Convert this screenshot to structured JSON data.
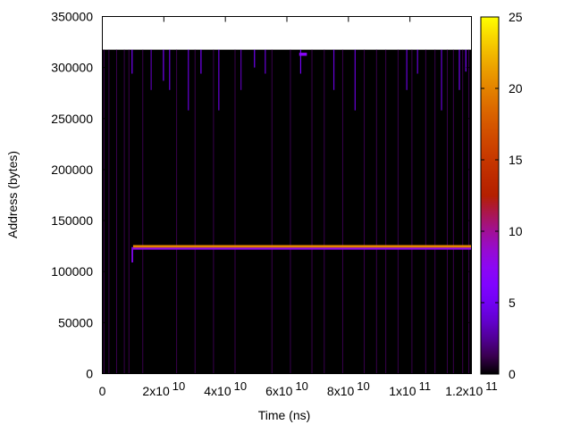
{
  "chart_data": {
    "type": "heatmap",
    "title": "",
    "xlabel": "Time (ns)",
    "ylabel": "Address (bytes)",
    "xlim": [
      0,
      120000000000.0
    ],
    "ylim": [
      0,
      350000
    ],
    "cblim": [
      0,
      25
    ],
    "palette": "gnuplot rgbformulae 7,5,15 (black-purple-red-orange-yellow)",
    "grid": false,
    "x_ticks": [
      {
        "mant": "0",
        "exp": ""
      },
      {
        "mant": "2x10",
        "exp": "10"
      },
      {
        "mant": "4x10",
        "exp": "10"
      },
      {
        "mant": "6x10",
        "exp": "10"
      },
      {
        "mant": "8x10",
        "exp": "10"
      },
      {
        "mant": "1x10",
        "exp": "11"
      },
      {
        "mant": "1.2x10",
        "exp": "11"
      }
    ],
    "x_tick_values": [
      0,
      20000000000.0,
      40000000000.0,
      60000000000.0,
      80000000000.0,
      100000000000.0,
      120000000000.0
    ],
    "y_ticks": [
      "0",
      "50000",
      "100000",
      "150000",
      "200000",
      "250000",
      "300000",
      "350000"
    ],
    "y_tick_values": [
      0,
      50000,
      100000,
      150000,
      200000,
      250000,
      300000,
      350000
    ],
    "cb_ticks": [
      "0",
      "5",
      "10",
      "15",
      "20",
      "25"
    ],
    "cb_tick_values": [
      0,
      5,
      10,
      15,
      20,
      25
    ],
    "data_extent": {
      "x": [
        0,
        120000000000.0
      ],
      "y": [
        0,
        317500
      ],
      "background_value": 0
    },
    "bands": [
      {
        "x": [
          10000000000.0,
          120000000000.0
        ],
        "y": [
          123500,
          126000
        ],
        "value": 20
      },
      {
        "x": [
          10000000000.0,
          120000000000.0
        ],
        "y": [
          121500,
          123500
        ],
        "value": 8
      },
      {
        "x": [
          9500000000.0,
          10000000000.0
        ],
        "y": [
          109000,
          124000
        ],
        "value": 7
      },
      {
        "x": [
          64000000000.0,
          66500000000.0
        ],
        "y": [
          311500,
          314500
        ],
        "value": 7
      }
    ],
    "stripes": [
      {
        "t": 9500000000.0,
        "y": [
          294000,
          317500
        ],
        "value": 5
      },
      {
        "t": 15700000000.0,
        "y": [
          278000,
          317500
        ],
        "value": 3
      },
      {
        "t": 19700000000.0,
        "y": [
          287000,
          317500
        ],
        "value": 5
      },
      {
        "t": 21700000000.0,
        "y": [
          278000,
          317500
        ],
        "value": 4
      },
      {
        "t": 27800000000.0,
        "y": [
          258000,
          317500
        ],
        "value": 4
      },
      {
        "t": 31900000000.0,
        "y": [
          294000,
          317500
        ],
        "value": 5
      },
      {
        "t": 37700000000.0,
        "y": [
          258000,
          317500
        ],
        "value": 4
      },
      {
        "t": 44900000000.0,
        "y": [
          278000,
          317500
        ],
        "value": 3
      },
      {
        "t": 49300000000.0,
        "y": [
          300000,
          317500
        ],
        "value": 5
      },
      {
        "t": 52800000000.0,
        "y": [
          294000,
          317500
        ],
        "value": 4
      },
      {
        "t": 64300000000.0,
        "y": [
          294000,
          317500
        ],
        "value": 5
      },
      {
        "t": 75100000000.0,
        "y": [
          278000,
          317500
        ],
        "value": 4
      },
      {
        "t": 82000000000.0,
        "y": [
          258000,
          317500
        ],
        "value": 4
      },
      {
        "t": 98800000000.0,
        "y": [
          278000,
          317500
        ],
        "value": 4
      },
      {
        "t": 102300000000.0,
        "y": [
          294000,
          317500
        ],
        "value": 4
      },
      {
        "t": 110100000000.0,
        "y": [
          258000,
          317500
        ],
        "value": 4
      },
      {
        "t": 115900000000.0,
        "y": [
          278000,
          317500
        ],
        "value": 5
      },
      {
        "t": 118000000000.0,
        "y": [
          296000,
          317500
        ],
        "value": 6
      }
    ],
    "faint_stripes": [
      400000000.0,
      2000000000.0,
      4500000000.0,
      7000000000.0,
      8500000000.0,
      13000000000.0,
      24000000000.0,
      30000000000.0,
      36000000000.0,
      43000000000.0,
      55000000000.0,
      61000000000.0,
      68000000000.0,
      72000000000.0,
      78000000000.0,
      85000000000.0,
      89000000000.0,
      92000000000.0,
      96000000000.0,
      100500000000.0,
      105000000000.0,
      108000000000.0,
      112000000000.0,
      114000000000.0,
      117000000000.0,
      119000000000.0
    ]
  }
}
